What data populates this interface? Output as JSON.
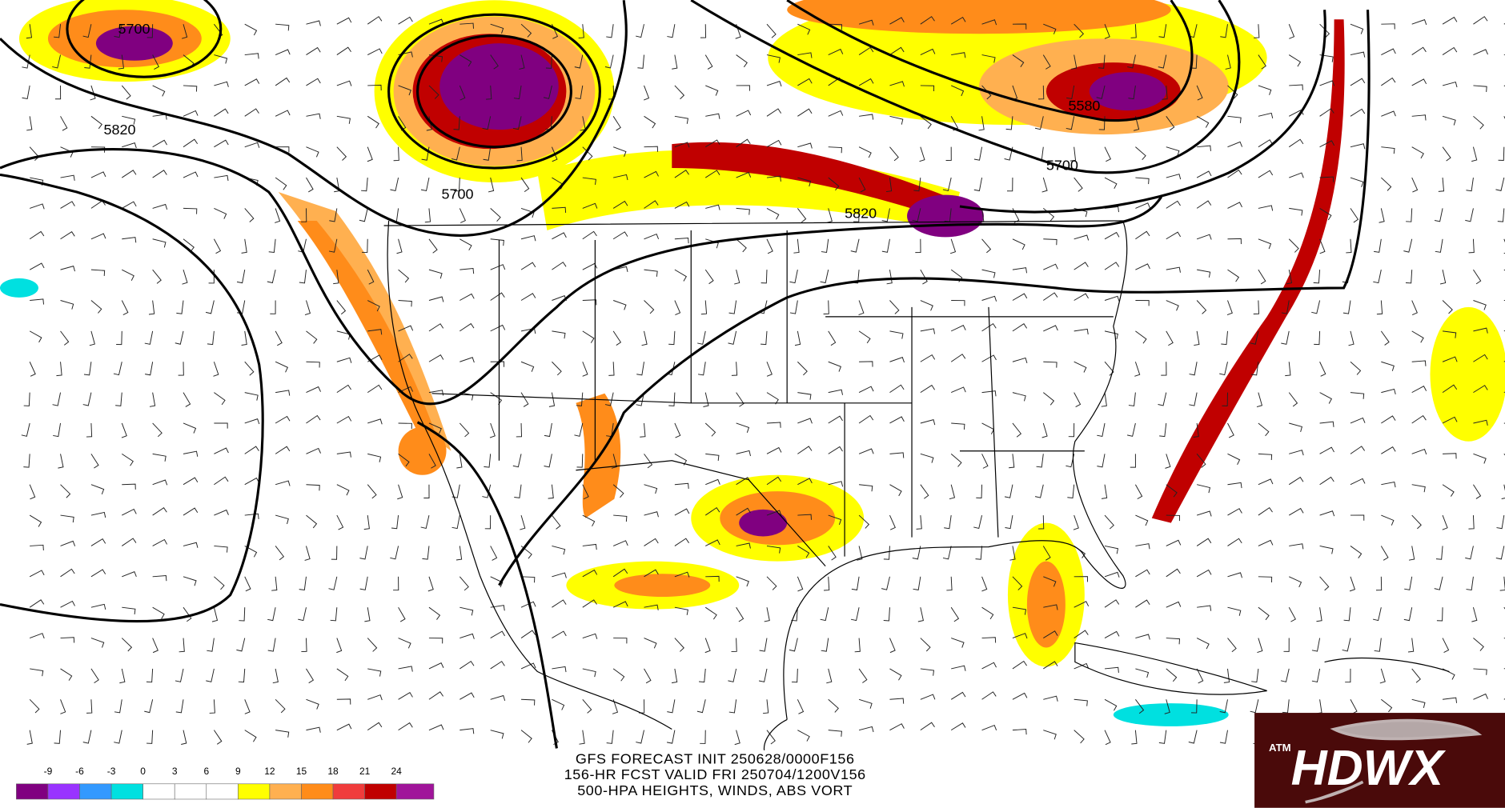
{
  "map": {
    "contour_labels": [
      "5700",
      "5820",
      "5700",
      "5820",
      "5580",
      "5700"
    ],
    "colorbar": {
      "ticks": [
        -9,
        -6,
        -3,
        0,
        3,
        6,
        9,
        12,
        15,
        18,
        21,
        24
      ],
      "colors": [
        "#800080",
        "#9933ff",
        "#3399ff",
        "#00e0e0",
        "#ffffff",
        "#ffffff",
        "#ffffff",
        "#ffff00",
        "#ffb050",
        "#ff8c1a",
        "#f03c3c",
        "#c00000",
        "#a0149a"
      ]
    },
    "caption": [
      "GFS FORECAST INIT 250628/0000F156",
      "156-HR FCST VALID FRI 250704/1200V156",
      "500-HPA HEIGHTS, WINDS, ABS VORT"
    ],
    "logo": {
      "text": "HDWX",
      "badge": "ATM"
    }
  }
}
